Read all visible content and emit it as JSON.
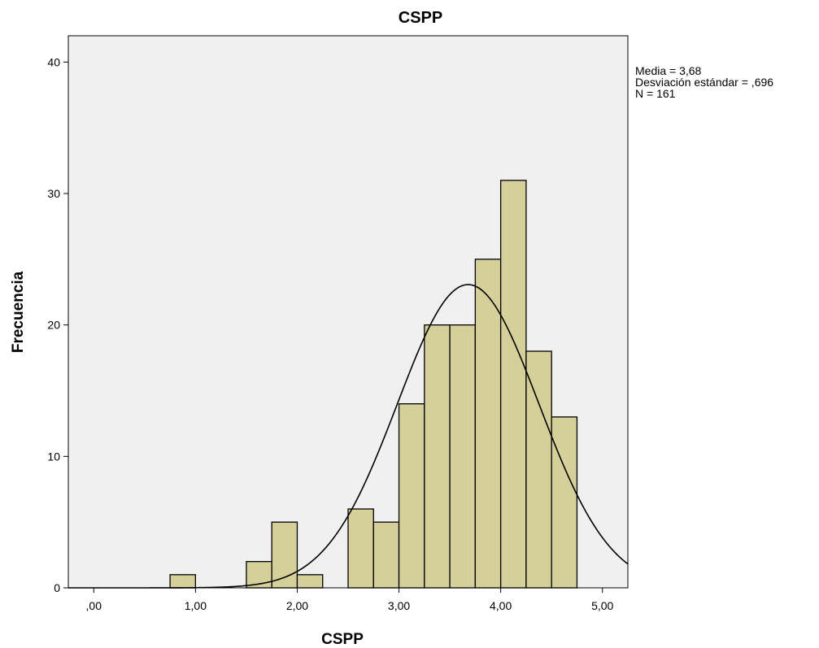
{
  "chart_data": {
    "type": "bar",
    "subtype": "histogram",
    "title": "CSPP",
    "xlabel": "CSPP",
    "ylabel": "Frecuencia",
    "x_ticks": [
      ",00",
      "1,00",
      "2,00",
      "3,00",
      "4,00",
      "5,00"
    ],
    "x_tick_values": [
      0,
      1,
      2,
      3,
      4,
      5
    ],
    "y_ticks": [
      "0",
      "10",
      "20",
      "30",
      "40"
    ],
    "y_tick_values": [
      0,
      10,
      20,
      30,
      40
    ],
    "xlim": [
      -0.25,
      5.25
    ],
    "ylim": [
      0,
      42
    ],
    "bins": [
      {
        "start": 0.75,
        "end": 1.0,
        "count": 1
      },
      {
        "start": 1.5,
        "end": 1.75,
        "count": 2
      },
      {
        "start": 1.75,
        "end": 2.0,
        "count": 5
      },
      {
        "start": 2.0,
        "end": 2.25,
        "count": 1
      },
      {
        "start": 2.5,
        "end": 2.75,
        "count": 6
      },
      {
        "start": 2.75,
        "end": 3.0,
        "count": 5
      },
      {
        "start": 3.0,
        "end": 3.25,
        "count": 14
      },
      {
        "start": 3.25,
        "end": 3.5,
        "count": 20
      },
      {
        "start": 3.5,
        "end": 3.75,
        "count": 20
      },
      {
        "start": 3.75,
        "end": 4.0,
        "count": 25
      },
      {
        "start": 4.0,
        "end": 4.25,
        "count": 31
      },
      {
        "start": 4.25,
        "end": 4.5,
        "count": 18
      },
      {
        "start": 4.5,
        "end": 4.75,
        "count": 13
      }
    ],
    "normal_curve": {
      "mean": 3.68,
      "sd": 0.696,
      "n": 161,
      "bin_width": 0.25
    },
    "stats": [
      "Media = 3,68",
      "Desviación estándar = ,696",
      "N = 161"
    ],
    "colors": {
      "bar_fill": "#d5cf9a",
      "bar_stroke": "#000000",
      "plot_bg": "#f0f0f0",
      "curve": "#000000"
    },
    "grid": false,
    "legend_placement": "top-right"
  }
}
